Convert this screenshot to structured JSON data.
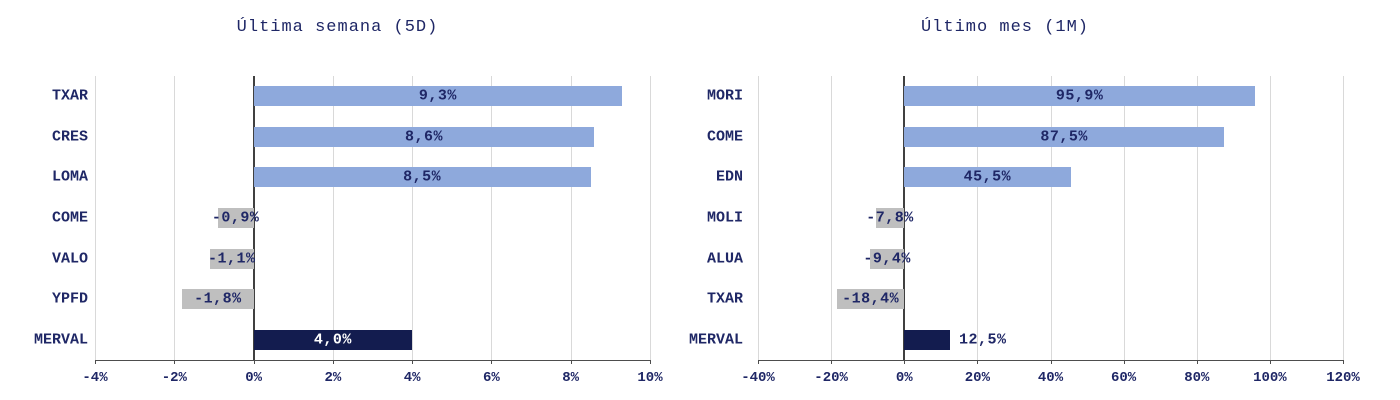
{
  "page": {
    "background": "#ffffff"
  },
  "colors": {
    "bar_positive": "#8ea9dc",
    "bar_negative": "#bfbfbf",
    "bar_benchmark": "#131c4f",
    "text": "#1f2766",
    "gridline": "#d9d9d9",
    "zero_line": "#404040",
    "axis_line": "#4d4d4d",
    "value_label_on_dark": "#ffffff"
  },
  "chart_data": [
    {
      "type": "bar",
      "orientation": "horizontal",
      "title": "Última semana (5D)",
      "xlabel": "",
      "ylabel": "",
      "xlim": [
        -4,
        10
      ],
      "grid": true,
      "legend": false,
      "categories": [
        "TXAR",
        "CRES",
        "LOMA",
        "COME",
        "VALO",
        "YPFD",
        "MERVAL"
      ],
      "values": [
        9.3,
        8.6,
        8.5,
        -0.9,
        -1.1,
        -1.8,
        4.0
      ],
      "bars": [
        {
          "ticker": "TXAR",
          "value": 9.3,
          "label": "9,3%",
          "kind": "positive",
          "label_pos": "center",
          "label_color": "dark"
        },
        {
          "ticker": "CRES",
          "value": 8.6,
          "label": "8,6%",
          "kind": "positive",
          "label_pos": "center",
          "label_color": "dark"
        },
        {
          "ticker": "LOMA",
          "value": 8.5,
          "label": "8,5%",
          "kind": "positive",
          "label_pos": "center",
          "label_color": "dark"
        },
        {
          "ticker": "COME",
          "value": -0.9,
          "label": "-0,9%",
          "kind": "negative",
          "label_pos": "center",
          "label_color": "dark"
        },
        {
          "ticker": "VALO",
          "value": -1.1,
          "label": "-1,1%",
          "kind": "negative",
          "label_pos": "center",
          "label_color": "dark"
        },
        {
          "ticker": "YPFD",
          "value": -1.8,
          "label": "-1,8%",
          "kind": "negative",
          "label_pos": "center",
          "label_color": "dark"
        },
        {
          "ticker": "MERVAL",
          "value": 4.0,
          "label": "4,0%",
          "kind": "benchmark",
          "label_pos": "center",
          "label_color": "white"
        }
      ],
      "ticks": [
        {
          "v": -4,
          "label": "-4%"
        },
        {
          "v": -2,
          "label": "-2%"
        },
        {
          "v": 0,
          "label": "0%"
        },
        {
          "v": 2,
          "label": "2%"
        },
        {
          "v": 4,
          "label": "4%"
        },
        {
          "v": 6,
          "label": "6%"
        },
        {
          "v": 8,
          "label": "8%"
        },
        {
          "v": 10,
          "label": "10%"
        }
      ]
    },
    {
      "type": "bar",
      "orientation": "horizontal",
      "title": "Último mes (1M)",
      "xlabel": "",
      "ylabel": "",
      "xlim": [
        -40,
        120
      ],
      "grid": true,
      "legend": false,
      "categories": [
        "MORI",
        "COME",
        "EDN",
        "MOLI",
        "ALUA",
        "TXAR",
        "MERVAL"
      ],
      "values": [
        95.9,
        87.5,
        45.5,
        -7.8,
        -9.4,
        -18.4,
        12.5
      ],
      "bars": [
        {
          "ticker": "MORI",
          "value": 95.9,
          "label": "95,9%",
          "kind": "positive",
          "label_pos": "center",
          "label_color": "dark"
        },
        {
          "ticker": "COME",
          "value": 87.5,
          "label": "87,5%",
          "kind": "positive",
          "label_pos": "center",
          "label_color": "dark"
        },
        {
          "ticker": "EDN",
          "value": 45.5,
          "label": "45,5%",
          "kind": "positive",
          "label_pos": "center",
          "label_color": "dark"
        },
        {
          "ticker": "MOLI",
          "value": -7.8,
          "label": "-7,8%",
          "kind": "negative",
          "label_pos": "center",
          "label_color": "dark"
        },
        {
          "ticker": "ALUA",
          "value": -9.4,
          "label": "-9,4%",
          "kind": "negative",
          "label_pos": "center",
          "label_color": "dark"
        },
        {
          "ticker": "TXAR",
          "value": -18.4,
          "label": "-18,4%",
          "kind": "negative",
          "label_pos": "center",
          "label_color": "dark"
        },
        {
          "ticker": "MERVAL",
          "value": 12.5,
          "label": "12,5%",
          "kind": "benchmark",
          "label_pos": "outside-right",
          "label_color": "dark"
        }
      ],
      "ticks": [
        {
          "v": -40,
          "label": "-40%"
        },
        {
          "v": -20,
          "label": "-20%"
        },
        {
          "v": 0,
          "label": "0%"
        },
        {
          "v": 20,
          "label": "20%"
        },
        {
          "v": 40,
          "label": "40%"
        },
        {
          "v": 60,
          "label": "60%"
        },
        {
          "v": 80,
          "label": "80%"
        },
        {
          "v": 100,
          "label": "100%"
        },
        {
          "v": 120,
          "label": "120%"
        }
      ]
    }
  ]
}
